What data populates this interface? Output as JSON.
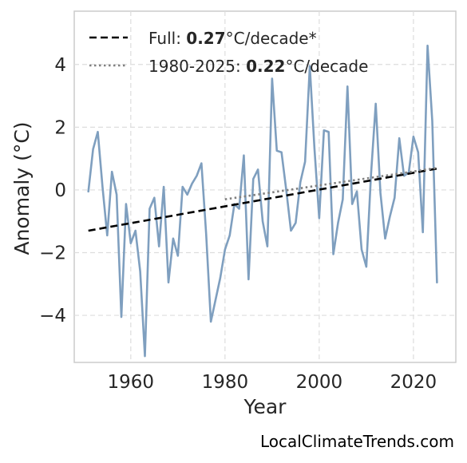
{
  "chart_data": {
    "type": "line",
    "xlabel": "Year",
    "ylabel": "Anomaly (°C)",
    "xlim": [
      1948,
      2029
    ],
    "ylim": [
      -5.5,
      5.7
    ],
    "xticks": [
      1960,
      1980,
      2000,
      2020
    ],
    "yticks": [
      -4,
      -2,
      0,
      2,
      4
    ],
    "ytick_labels": [
      "−4",
      "−2",
      "0",
      "2",
      "4"
    ],
    "grid": true,
    "legend_position": "top-left",
    "series": [
      {
        "style": "solid",
        "color": "#7f9fbf",
        "x": [
          1951,
          1952,
          1953,
          1954,
          1955,
          1956,
          1957,
          1958,
          1959,
          1960,
          1961,
          1962,
          1963,
          1964,
          1965,
          1966,
          1967,
          1968,
          1969,
          1970,
          1971,
          1972,
          1973,
          1974,
          1975,
          1976,
          1977,
          1978,
          1979,
          1980,
          1981,
          1982,
          1983,
          1984,
          1985,
          1986,
          1987,
          1988,
          1989,
          1990,
          1991,
          1992,
          1993,
          1994,
          1995,
          1996,
          1997,
          1998,
          1999,
          2000,
          2001,
          2002,
          2003,
          2004,
          2005,
          2006,
          2007,
          2008,
          2009,
          2010,
          2011,
          2012,
          2013,
          2014,
          2015,
          2016,
          2017,
          2018,
          2019,
          2020,
          2021,
          2022,
          2023,
          2024,
          2025
        ],
        "y": [
          -0.05,
          1.3,
          1.85,
          0.1,
          -1.45,
          0.58,
          -0.15,
          -4.05,
          -0.45,
          -1.7,
          -1.3,
          -2.6,
          -5.3,
          -0.6,
          -0.25,
          -1.8,
          0.1,
          -2.95,
          -1.55,
          -2.1,
          0.1,
          -0.15,
          0.2,
          0.45,
          0.85,
          -1.4,
          -4.2,
          -3.5,
          -2.8,
          -1.9,
          -1.45,
          -0.45,
          -0.6,
          1.1,
          -2.85,
          0.35,
          0.65,
          -1.0,
          -1.8,
          3.55,
          1.25,
          1.2,
          0.0,
          -1.3,
          -1.05,
          0.25,
          0.9,
          3.95,
          1.3,
          -0.9,
          1.9,
          1.85,
          -2.05,
          -1.05,
          -0.3,
          3.3,
          -0.45,
          -0.05,
          -1.9,
          -2.45,
          0.5,
          2.75,
          -0.1,
          -1.55,
          -0.85,
          -0.25,
          1.65,
          0.45,
          0.55,
          1.7,
          1.2,
          -1.35,
          4.6,
          2.2,
          -2.95
        ]
      },
      {
        "style": "dashed",
        "color": "#000000",
        "x": [
          1951,
          2025
        ],
        "y": [
          -1.3,
          0.68
        ],
        "legend_prefix": "Full: ",
        "legend_value": "0.27",
        "legend_suffix": "°C/decade*"
      },
      {
        "style": "dotted",
        "color": "#808080",
        "x": [
          1980,
          2025
        ],
        "y": [
          -0.3,
          0.7
        ],
        "legend_prefix": "1980-2025: ",
        "legend_value": "0.22",
        "legend_suffix": "°C/decade"
      }
    ],
    "source": "LocalClimateTrends.com"
  }
}
